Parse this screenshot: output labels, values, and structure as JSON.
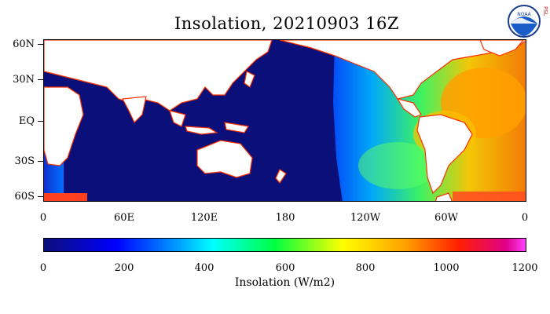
{
  "title": "Insolation, 20210903 16Z",
  "lat_labels": [
    "60N",
    "30N",
    "EQ",
    "30S",
    "60S"
  ],
  "lon_labels": [
    "0",
    "60E",
    "120E",
    "180",
    "120W",
    "60W",
    "0"
  ],
  "colorbar": {
    "ticks": [
      "0",
      "200",
      "400",
      "600",
      "800",
      "1000",
      "1200"
    ],
    "title": "Insolation (W/m2)",
    "range": [
      0,
      1200
    ],
    "colors": [
      "#0a0f7a",
      "#0000ff",
      "#00a0ff",
      "#00ffff",
      "#00ff40",
      "#ffff00",
      "#ffa000",
      "#ff2000",
      "#e0008a",
      "#ff40ff"
    ]
  },
  "logo": {
    "icon": "noaa-logo-icon",
    "text": "NOAA",
    "side_text": "PSL"
  },
  "colors": {
    "ocean_night": "#0a0f7a",
    "land": "#ffffff",
    "coast": "#ff3000"
  }
}
